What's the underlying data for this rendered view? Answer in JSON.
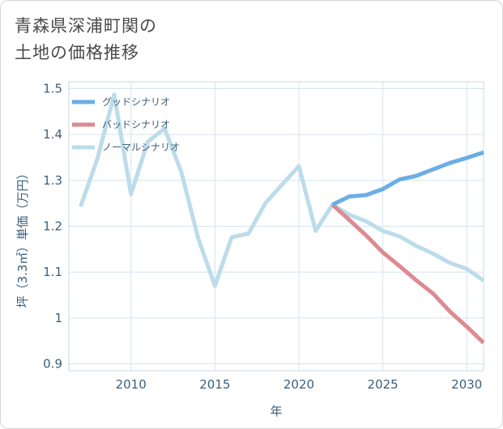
{
  "page": {
    "title_line1": "青森県深浦町関の",
    "title_line2": "土地の価格推移"
  },
  "chart_data": {
    "type": "line",
    "xlabel": "年",
    "ylabel": "坪（3.3㎡）単価（万円）",
    "xlim": [
      2006.3,
      2031
    ],
    "ylim": [
      0.885,
      1.515
    ],
    "xticks": [
      2010,
      2015,
      2020,
      2025,
      2030
    ],
    "xtick_labels": [
      "2010",
      "2015",
      "2020",
      "2025",
      "2030"
    ],
    "yticks": [
      0.9,
      1.0,
      1.1,
      1.2,
      1.3,
      1.4,
      1.5
    ],
    "ytick_labels": [
      "0.9",
      "1",
      "1.1",
      "1.2",
      "1.3",
      "1.4",
      "1.5"
    ],
    "grid": true,
    "legend_position": "top-left",
    "series": [
      {
        "name": "グッドシナリオ",
        "color": "#6aaee6",
        "x": [
          2022,
          2023,
          2024,
          2025,
          2026,
          2027,
          2028,
          2029,
          2030,
          2031
        ],
        "values": [
          1.247,
          1.265,
          1.268,
          1.281,
          1.302,
          1.31,
          1.324,
          1.338,
          1.349,
          1.361
        ]
      },
      {
        "name": "バッドシナリオ",
        "color": "#dd8a92",
        "x": [
          2022,
          2023,
          2024,
          2025,
          2026,
          2027,
          2028,
          2029,
          2030,
          2031
        ],
        "values": [
          1.247,
          1.214,
          1.18,
          1.143,
          1.113,
          1.082,
          1.053,
          1.014,
          0.981,
          0.946
        ]
      },
      {
        "name": "ノーマルシナリオ",
        "color": "#bcdcea",
        "x": [
          2007,
          2008,
          2009,
          2010,
          2011,
          2012,
          2013,
          2014,
          2015,
          2016,
          2017,
          2018,
          2019,
          2020,
          2021,
          2022,
          2023,
          2024,
          2025,
          2026,
          2027,
          2028,
          2029,
          2030,
          2031
        ],
        "values": [
          1.243,
          1.347,
          1.487,
          1.27,
          1.384,
          1.413,
          1.318,
          1.174,
          1.07,
          1.176,
          1.184,
          1.25,
          1.291,
          1.331,
          1.19,
          1.247,
          1.225,
          1.211,
          1.19,
          1.178,
          1.157,
          1.14,
          1.12,
          1.107,
          1.082
        ]
      }
    ]
  }
}
